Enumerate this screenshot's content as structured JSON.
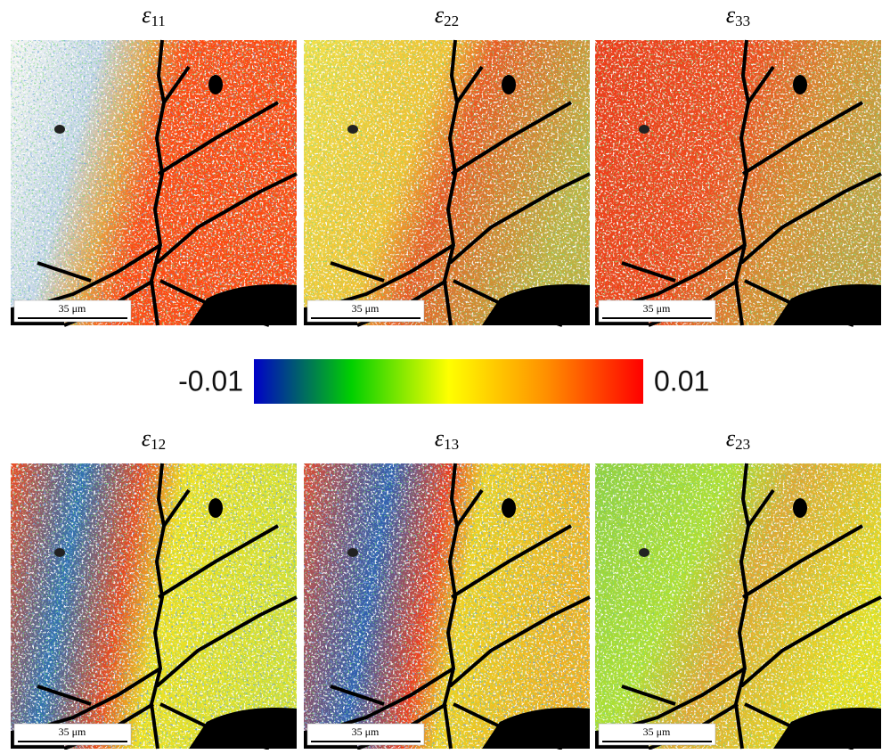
{
  "panels": [
    {
      "symbol": "ε",
      "subscript": "11"
    },
    {
      "symbol": "ε",
      "subscript": "22"
    },
    {
      "symbol": "ε",
      "subscript": "33"
    },
    {
      "symbol": "ε",
      "subscript": "12"
    },
    {
      "symbol": "ε",
      "subscript": "13"
    },
    {
      "symbol": "ε",
      "subscript": "23"
    }
  ],
  "scale_bar": "35 μm",
  "colorbar": {
    "ticks": [
      -0.01,
      0.01
    ],
    "colors": [
      "#0000c8",
      "#00d000",
      "#ffff00",
      "#ff9000",
      "#ff0000"
    ]
  }
}
